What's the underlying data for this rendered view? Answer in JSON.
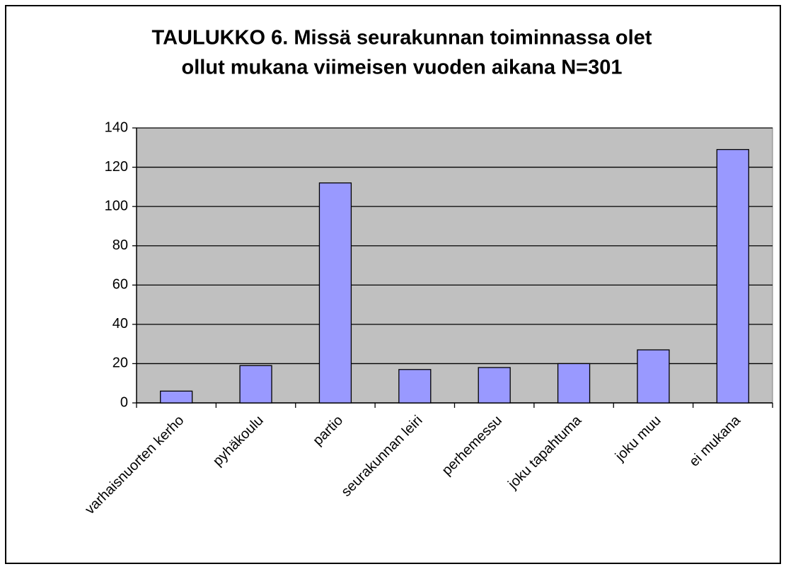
{
  "chart_data": {
    "type": "bar",
    "title": [
      "TAULUKKO 6. Missä seurakunnan toiminnassa olet",
      "ollut mukana viimeisen vuoden aikana N=301"
    ],
    "categories": [
      "varhaisnuorten kerho",
      "pyhäkoulu",
      "partio",
      "seurakunnan leiri",
      "perhemessu",
      "joku tapahtuma",
      "joku muu",
      "ei mukana"
    ],
    "values": [
      6,
      19,
      112,
      17,
      18,
      20,
      27,
      129
    ],
    "color": "#9999ff",
    "plot_background": "#c0c0c0",
    "ylim": [
      0,
      140
    ],
    "yticks": [
      0,
      20,
      40,
      60,
      80,
      100,
      120,
      140
    ],
    "grid": true
  }
}
